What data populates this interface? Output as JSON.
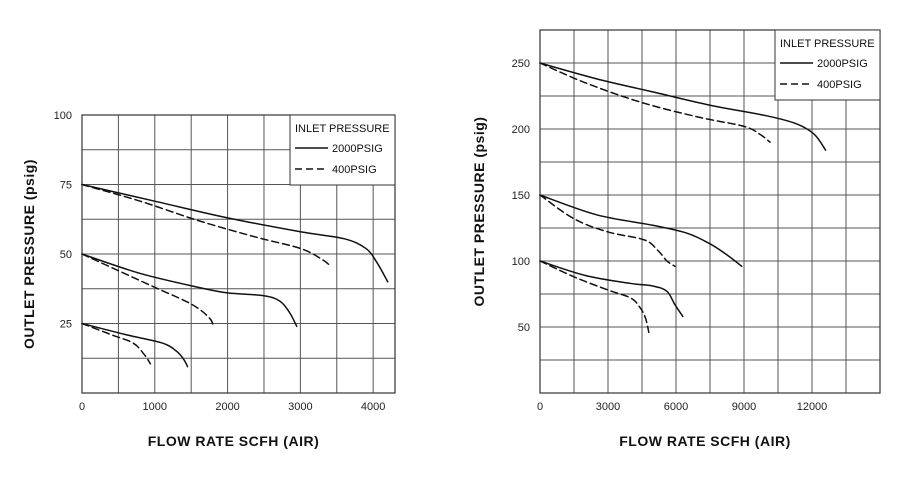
{
  "chart_data": [
    {
      "type": "line",
      "title": "",
      "xlabel": "FLOW  RATE  SCFH  (AIR)",
      "ylabel": "OUTLET PRESSURE (psig)",
      "xlim": [
        0,
        4300
      ],
      "ylim": [
        0,
        100
      ],
      "xticks": [
        0,
        1000,
        2000,
        3000,
        4000
      ],
      "xtick_labels": [
        "0",
        "1000",
        "2000",
        "3000",
        "4000"
      ],
      "yticks": [
        25,
        50,
        75,
        100
      ],
      "ytick_labels": [
        "25",
        "50",
        "75",
        "100"
      ],
      "grid": true,
      "grid_x_step": 500,
      "grid_y_step": 12.5,
      "legend": {
        "title": "INLET PRESSURE",
        "position": "top-right",
        "entries": [
          {
            "label": "2000PSIG",
            "style": "solid"
          },
          {
            "label": "400PSIG",
            "style": "dashed"
          }
        ]
      },
      "series": [
        {
          "inlet": "2000PSIG",
          "style": "solid",
          "points": [
            [
              0,
              75
            ],
            [
              1000,
              69
            ],
            [
              2000,
              63
            ],
            [
              3000,
              58
            ],
            [
              3600,
              55.5
            ],
            [
              3900,
              52
            ],
            [
              4050,
              47
            ],
            [
              4200,
              40
            ]
          ]
        },
        {
          "inlet": "400PSIG",
          "style": "dashed",
          "points": [
            [
              0,
              75
            ],
            [
              800,
              69
            ],
            [
              1600,
              62
            ],
            [
              2400,
              56
            ],
            [
              3000,
              52
            ],
            [
              3300,
              48
            ],
            [
              3420,
              45.5
            ]
          ]
        },
        {
          "inlet": "2000PSIG",
          "style": "solid",
          "points": [
            [
              0,
              50
            ],
            [
              800,
              43
            ],
            [
              1600,
              38
            ],
            [
              2000,
              36
            ],
            [
              2500,
              35
            ],
            [
              2720,
              33
            ],
            [
              2850,
              29
            ],
            [
              2950,
              24
            ]
          ]
        },
        {
          "inlet": "400PSIG",
          "style": "dashed",
          "points": [
            [
              0,
              50
            ],
            [
              500,
              44
            ],
            [
              1000,
              38
            ],
            [
              1500,
              32
            ],
            [
              1750,
              27
            ],
            [
              1810,
              23.5
            ]
          ]
        },
        {
          "inlet": "2000PSIG",
          "style": "solid",
          "points": [
            [
              0,
              25
            ],
            [
              600,
              21
            ],
            [
              1100,
              18
            ],
            [
              1300,
              15
            ],
            [
              1400,
              12
            ],
            [
              1450,
              9.5
            ]
          ]
        },
        {
          "inlet": "400PSIG",
          "style": "dashed",
          "points": [
            [
              0,
              25
            ],
            [
              400,
              21
            ],
            [
              700,
              18
            ],
            [
              850,
              14
            ],
            [
              940,
              10.5
            ]
          ]
        }
      ]
    },
    {
      "type": "line",
      "title": "",
      "xlabel": "FLOW  RATE  SCFH  (AIR)",
      "ylabel": "OUTLET PRESSURE (psig)",
      "xlim": [
        0,
        15000
      ],
      "ylim": [
        0,
        275
      ],
      "xticks": [
        0,
        3000,
        6000,
        9000,
        12000
      ],
      "xtick_labels": [
        "0",
        "3000",
        "6000",
        "9000",
        "12000"
      ],
      "yticks": [
        50,
        100,
        150,
        200,
        250
      ],
      "ytick_labels": [
        "50",
        "100",
        "150",
        "200",
        "250"
      ],
      "grid": true,
      "grid_x_step": 1500,
      "grid_y_step": 25,
      "legend": {
        "title": "INLET PRESSURE",
        "position": "top-right",
        "entries": [
          {
            "label": "2000PSIG",
            "style": "solid"
          },
          {
            "label": "400PSIG",
            "style": "dashed"
          }
        ]
      },
      "series": [
        {
          "inlet": "2000PSIG",
          "style": "solid",
          "points": [
            [
              0,
              250
            ],
            [
              2500,
              238
            ],
            [
              5000,
              228
            ],
            [
              7500,
              218
            ],
            [
              10000,
              210
            ],
            [
              11300,
              204
            ],
            [
              12100,
              196
            ],
            [
              12600,
              184
            ]
          ]
        },
        {
          "inlet": "400PSIG",
          "style": "dashed",
          "points": [
            [
              0,
              250
            ],
            [
              2000,
              235
            ],
            [
              4500,
              220
            ],
            [
              7000,
              209
            ],
            [
              9000,
              202
            ],
            [
              9700,
              196
            ],
            [
              10150,
              190
            ]
          ]
        },
        {
          "inlet": "2000PSIG",
          "style": "solid",
          "points": [
            [
              0,
              150
            ],
            [
              2500,
              135
            ],
            [
              5000,
              127
            ],
            [
              6500,
              121
            ],
            [
              7500,
              113
            ],
            [
              8300,
              104
            ],
            [
              8900,
              96
            ]
          ]
        },
        {
          "inlet": "400PSIG",
          "style": "dashed",
          "points": [
            [
              0,
              150
            ],
            [
              1500,
              132
            ],
            [
              3000,
              122
            ],
            [
              4600,
              116
            ],
            [
              5200,
              108
            ],
            [
              5600,
              100
            ],
            [
              5950,
              96
            ]
          ]
        },
        {
          "inlet": "2000PSIG",
          "style": "solid",
          "points": [
            [
              0,
              100
            ],
            [
              2000,
              89
            ],
            [
              4000,
              83
            ],
            [
              5000,
              81
            ],
            [
              5600,
              77
            ],
            [
              5950,
              67
            ],
            [
              6300,
              58
            ]
          ]
        },
        {
          "inlet": "400PSIG",
          "style": "dashed",
          "points": [
            [
              0,
              100
            ],
            [
              1500,
              88
            ],
            [
              3000,
              78
            ],
            [
              4000,
              72
            ],
            [
              4400,
              65
            ],
            [
              4650,
              57
            ],
            [
              4800,
              46
            ]
          ]
        }
      ]
    }
  ]
}
